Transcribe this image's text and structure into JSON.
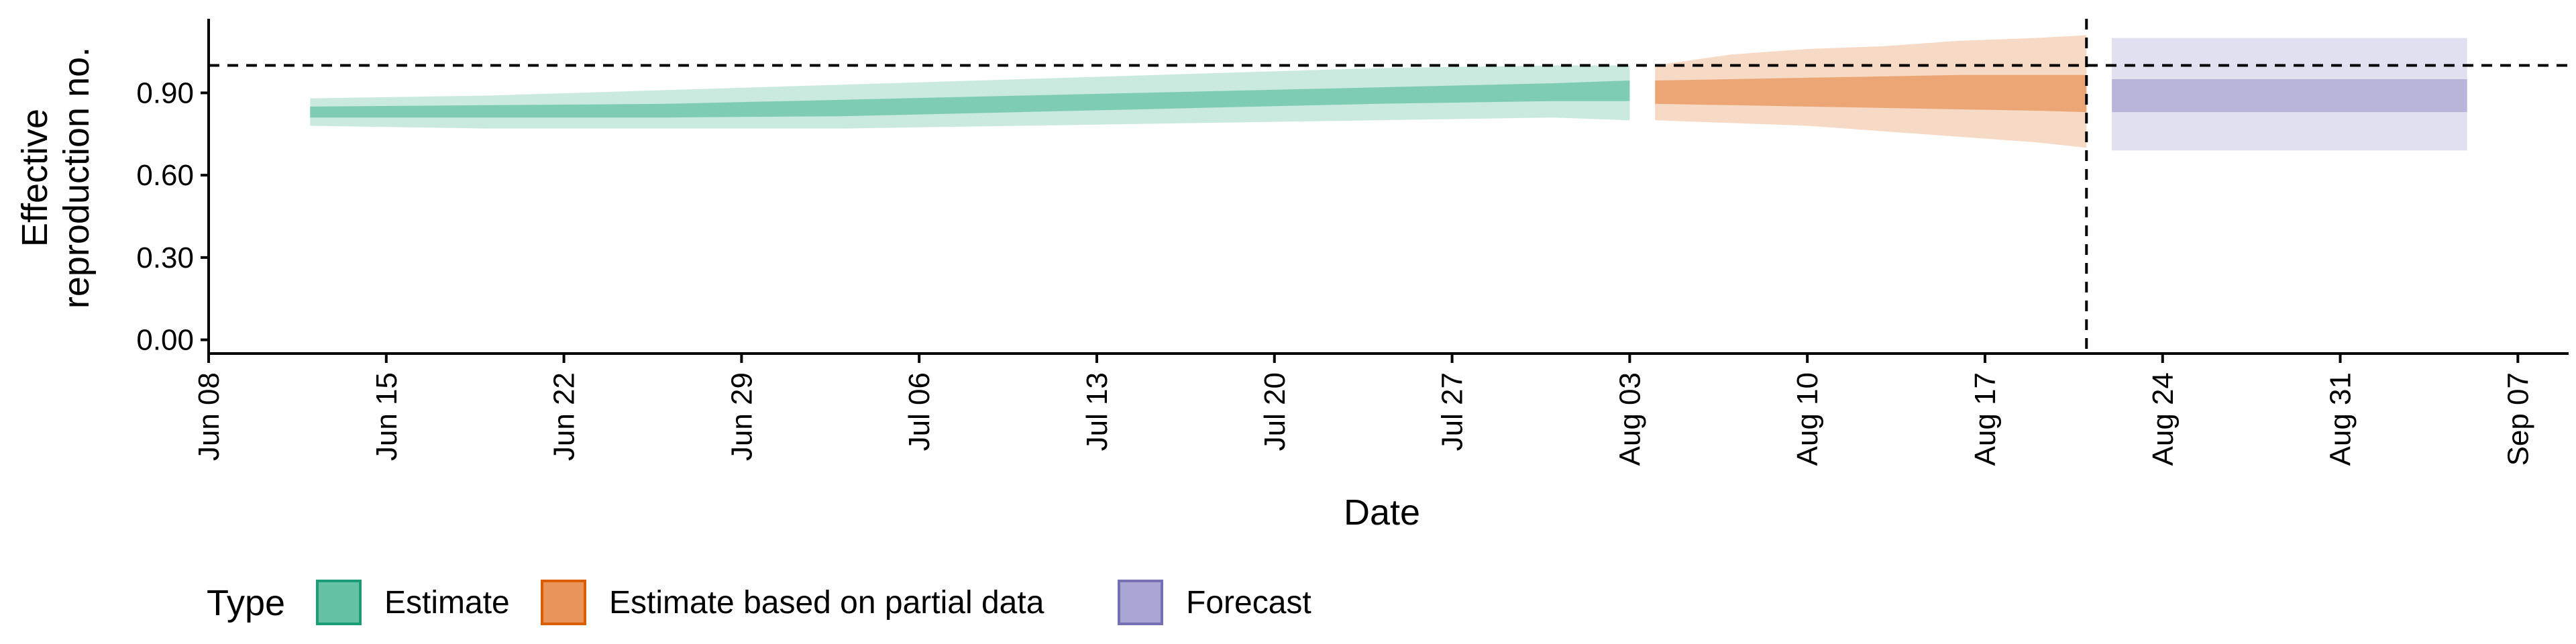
{
  "chart_data": {
    "type": "area",
    "xlabel": "Date",
    "ylabel_lines": [
      "Effective",
      "reproduction no."
    ],
    "x_ticks": [
      "Jun 08",
      "Jun 15",
      "Jun 22",
      "Jun 29",
      "Jul 06",
      "Jul 13",
      "Jul 20",
      "Jul 27",
      "Aug 03",
      "Aug 10",
      "Aug 17",
      "Aug 24",
      "Aug 31",
      "Sep 07"
    ],
    "x_tick_dates": [
      "2020-06-08",
      "2020-06-15",
      "2020-06-22",
      "2020-06-29",
      "2020-07-06",
      "2020-07-13",
      "2020-07-20",
      "2020-07-27",
      "2020-08-03",
      "2020-08-10",
      "2020-08-17",
      "2020-08-24",
      "2020-08-31",
      "2020-09-07"
    ],
    "y_ticks": [
      "0.00",
      "0.30",
      "0.60",
      "0.90"
    ],
    "y_tick_values": [
      0,
      0.3,
      0.6,
      0.9
    ],
    "xlim": [
      "2020-06-08",
      "2020-09-09"
    ],
    "ylim": [
      -0.05,
      1.17
    ],
    "reference_line_y": 1.0,
    "reference_line_date": "2020-08-21",
    "legend": {
      "title": "Type",
      "position": "bottom",
      "entries": [
        "Estimate",
        "Estimate based on partial data",
        "Forecast"
      ]
    },
    "series": [
      {
        "name": "Estimate",
        "color": "#66c2a5",
        "dates": [
          "2020-06-12",
          "2020-06-19",
          "2020-06-26",
          "2020-07-03",
          "2020-07-10",
          "2020-07-17",
          "2020-07-24",
          "2020-07-31",
          "2020-08-03"
        ],
        "median": [
          0.83,
          0.83,
          0.835,
          0.845,
          0.86,
          0.875,
          0.89,
          0.905,
          0.91
        ],
        "inner": [
          [
            0.81,
            0.85
          ],
          [
            0.81,
            0.855
          ],
          [
            0.81,
            0.86
          ],
          [
            0.815,
            0.875
          ],
          [
            0.83,
            0.89
          ],
          [
            0.845,
            0.905
          ],
          [
            0.86,
            0.92
          ],
          [
            0.87,
            0.935
          ],
          [
            0.87,
            0.945
          ]
        ],
        "outer": [
          [
            0.78,
            0.88
          ],
          [
            0.77,
            0.89
          ],
          [
            0.77,
            0.91
          ],
          [
            0.77,
            0.93
          ],
          [
            0.78,
            0.95
          ],
          [
            0.79,
            0.97
          ],
          [
            0.8,
            0.99
          ],
          [
            0.81,
            1.0
          ],
          [
            0.8,
            1.0
          ]
        ]
      },
      {
        "name": "Estimate based on partial data",
        "color": "#e8945a",
        "dates": [
          "2020-08-04",
          "2020-08-07",
          "2020-08-10",
          "2020-08-13",
          "2020-08-16",
          "2020-08-19",
          "2020-08-21"
        ],
        "median": [
          0.9,
          0.9,
          0.9,
          0.905,
          0.905,
          0.9,
          0.9
        ],
        "inner": [
          [
            0.86,
            0.945
          ],
          [
            0.855,
            0.95
          ],
          [
            0.85,
            0.955
          ],
          [
            0.845,
            0.96
          ],
          [
            0.84,
            0.965
          ],
          [
            0.835,
            0.965
          ],
          [
            0.83,
            0.965
          ]
        ],
        "outer": [
          [
            0.8,
            1.0
          ],
          [
            0.79,
            1.04
          ],
          [
            0.78,
            1.06
          ],
          [
            0.76,
            1.07
          ],
          [
            0.74,
            1.09
          ],
          [
            0.72,
            1.1
          ],
          [
            0.7,
            1.11
          ]
        ]
      },
      {
        "name": "Forecast",
        "color": "#a9a6d3",
        "dates": [
          "2020-08-22",
          "2020-09-05"
        ],
        "inner": [
          [
            0.83,
            0.95
          ],
          [
            0.83,
            0.95
          ]
        ],
        "outer": [
          [
            0.69,
            1.1
          ],
          [
            0.69,
            1.1
          ]
        ]
      }
    ]
  }
}
